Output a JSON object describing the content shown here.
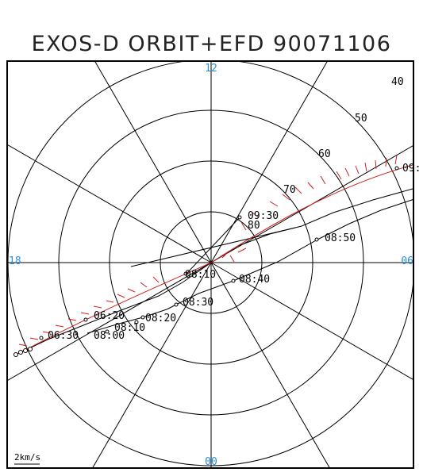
{
  "title": "EXOS-D ORBIT+EFD 90071106",
  "scale_label": "2km/s",
  "lt_labels": {
    "top": "12",
    "left": "18",
    "right": "06",
    "bottom": "00"
  },
  "lat_labels": [
    "40",
    "50",
    "60",
    "70",
    "80"
  ],
  "time_labels": [
    "06:20",
    "06:30",
    "08:00",
    "08:10",
    "08:20",
    "08:30",
    "08:40",
    "08:50",
    "09:30",
    "09:",
    "08:10"
  ],
  "colors": {
    "axes": "#000000",
    "hour_labels": "#2a8fd6",
    "efd_vectors": "#cc2222",
    "orbit": "#000000"
  }
}
